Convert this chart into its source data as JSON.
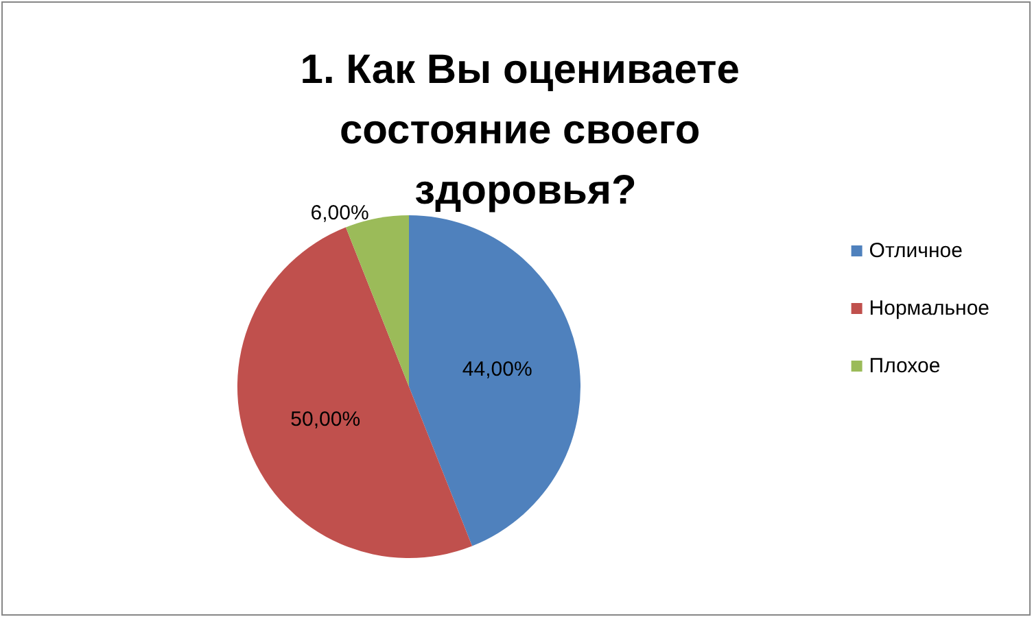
{
  "chart_data": {
    "type": "pie",
    "title": "1. Как Вы оцениваете состояние своего здоровья?",
    "categories": [
      "Отличное",
      "Нормальное",
      "Плохое"
    ],
    "values": [
      44,
      50,
      6
    ],
    "colors": [
      "#4f81bd",
      "#c0504d",
      "#9bbb59"
    ],
    "value_labels": [
      "44,00%",
      "50,00%",
      "6,00%"
    ],
    "legend": "right"
  }
}
